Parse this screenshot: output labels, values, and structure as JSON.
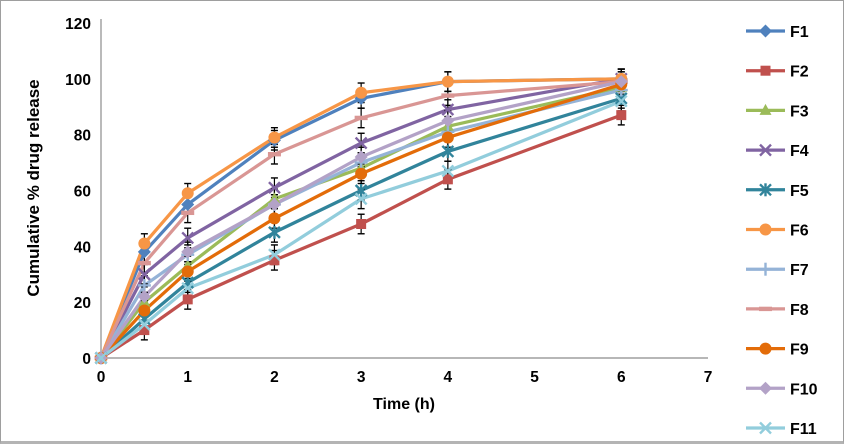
{
  "chart_data": {
    "type": "line",
    "title": "",
    "xlabel": "Time (h)",
    "ylabel": "Cumulative % drug release",
    "x": [
      0,
      0.5,
      1,
      2,
      3,
      4,
      6
    ],
    "x_ticks": [
      0,
      1,
      2,
      3,
      4,
      5,
      6,
      7
    ],
    "y_ticks": [
      0,
      20,
      40,
      60,
      80,
      100,
      120
    ],
    "xlim": [
      0,
      7
    ],
    "ylim": [
      0,
      120
    ],
    "grid": false,
    "legend_position": "right",
    "error_bar": 3.5,
    "axis_color": "#8C8C8C",
    "text_color": "#000000",
    "border_color": "#9E9E9E",
    "series": [
      {
        "name": "F1",
        "color": "#4F81BD",
        "marker": "diamond",
        "values": [
          0,
          38,
          55,
          78,
          93,
          99,
          100
        ]
      },
      {
        "name": "F2",
        "color": "#C0504D",
        "marker": "square",
        "values": [
          0,
          10,
          21,
          35,
          48,
          64,
          87
        ]
      },
      {
        "name": "F3",
        "color": "#9BBB59",
        "marker": "triangle",
        "values": [
          0,
          20,
          33,
          57,
          68,
          83,
          97
        ]
      },
      {
        "name": "F4",
        "color": "#8064A2",
        "marker": "x",
        "values": [
          0,
          30,
          43,
          61,
          77,
          89,
          100
        ]
      },
      {
        "name": "F5",
        "color": "#31849B",
        "marker": "asterisk",
        "values": [
          0,
          14,
          27,
          45,
          60,
          74,
          93
        ]
      },
      {
        "name": "F6",
        "color": "#F79646",
        "marker": "circle",
        "values": [
          0,
          41,
          59,
          79,
          95,
          99,
          100
        ]
      },
      {
        "name": "F7",
        "color": "#95B3D7",
        "marker": "plus",
        "values": [
          0,
          26,
          37,
          55,
          70,
          81,
          96
        ]
      },
      {
        "name": "F8",
        "color": "#D99694",
        "marker": "dash",
        "values": [
          0,
          34,
          52,
          73,
          86,
          94,
          99
        ]
      },
      {
        "name": "F9",
        "color": "#E36C09",
        "marker": "circle",
        "values": [
          0,
          17,
          31,
          50,
          66,
          79,
          98
        ]
      },
      {
        "name": "F10",
        "color": "#B3A2C7",
        "marker": "diamond",
        "values": [
          0,
          22,
          38,
          55,
          72,
          85,
          99
        ]
      },
      {
        "name": "F11",
        "color": "#92CDDC",
        "marker": "x",
        "values": [
          0,
          12,
          25,
          37,
          57,
          67,
          92
        ]
      }
    ]
  }
}
